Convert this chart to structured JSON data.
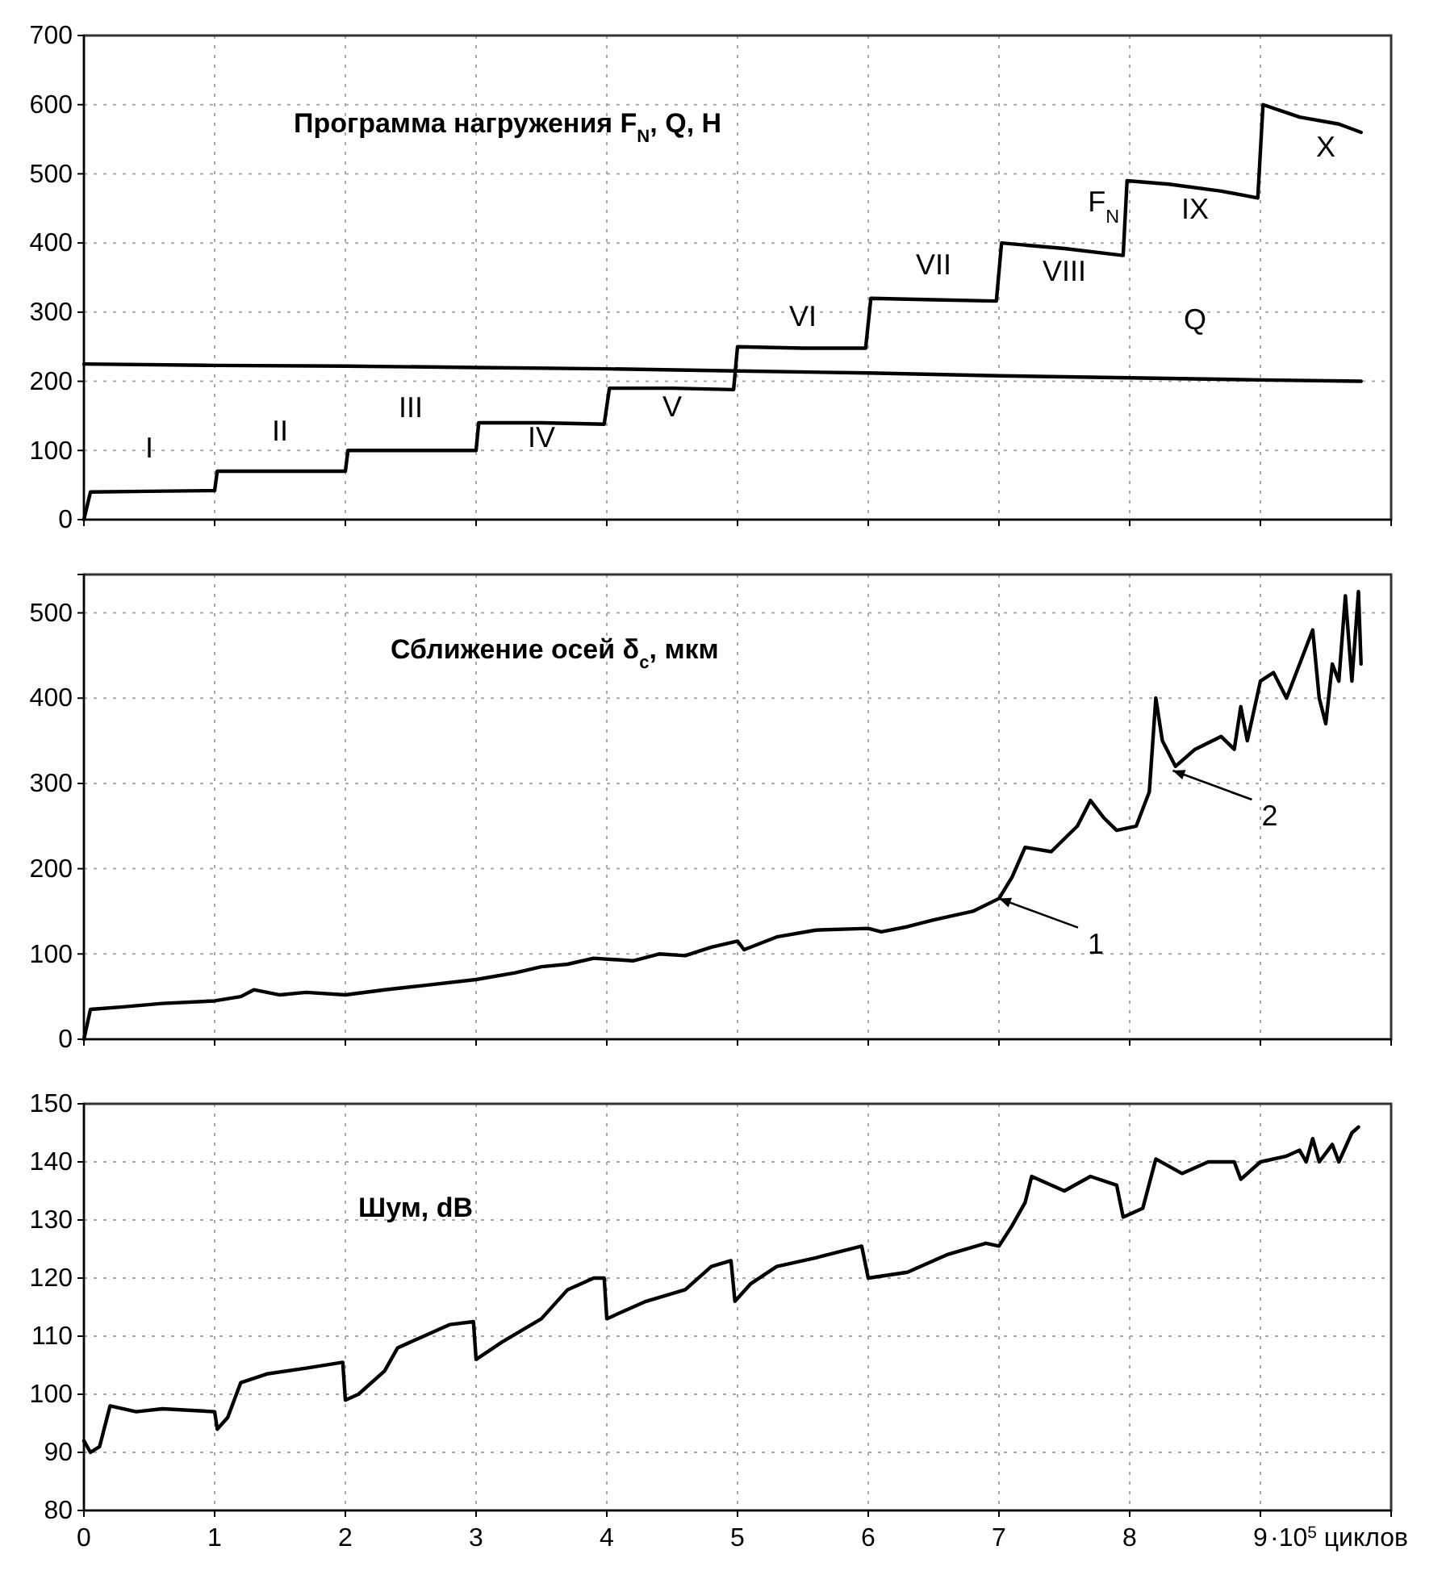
{
  "chart_data": [
    {
      "type": "line",
      "title": "Программа нагружения F$_{N}$, Q, H",
      "xlim": [
        0,
        10
      ],
      "xticks": [
        0,
        1,
        2,
        3,
        4,
        5,
        6,
        7,
        8,
        9
      ],
      "ylim": [
        0,
        700
      ],
      "yticks": [
        0,
        100,
        200,
        300,
        400,
        500,
        600,
        700
      ],
      "grid": true,
      "tick_labels": "y",
      "series": [
        {
          "name": "F$_{N}$",
          "color": "#000000",
          "x": [
            0,
            0.05,
            0.5,
            1.0,
            1.02,
            1.5,
            2.0,
            2.02,
            2.5,
            3.0,
            3.02,
            3.5,
            3.98,
            4.02,
            4.5,
            4.97,
            5.0,
            5.5,
            5.98,
            6.02,
            6.5,
            6.98,
            7.02,
            7.5,
            7.95,
            7.98,
            8.3,
            8.7,
            8.98,
            9.02,
            9.3,
            9.6,
            9.77
          ],
          "values": [
            0,
            40,
            41,
            42,
            70,
            70,
            70,
            100,
            100,
            100,
            140,
            140,
            138,
            190,
            190,
            188,
            250,
            248,
            248,
            320,
            318,
            316,
            400,
            392,
            382,
            490,
            485,
            475,
            465,
            600,
            582,
            572,
            560
          ]
        },
        {
          "name": "Q",
          "color": "#000000",
          "x": [
            0,
            1,
            2,
            3,
            4,
            5,
            6,
            7,
            8,
            9,
            9.77
          ],
          "values": [
            225,
            223,
            222,
            220,
            218,
            215,
            212,
            208,
            205,
            202,
            200
          ]
        }
      ],
      "annotations": [
        "I",
        "II",
        "III",
        "IV",
        "V",
        "VI",
        "VII",
        "VIII",
        "IX",
        "X"
      ]
    },
    {
      "type": "line",
      "title": "Сближение осей δ$_{c}$, мкм",
      "xlim": [
        0,
        10
      ],
      "xticks": [
        0,
        1,
        2,
        3,
        4,
        5,
        6,
        7,
        8,
        9
      ],
      "ylim": [
        0,
        545
      ],
      "yticks": [
        0,
        100,
        200,
        300,
        400,
        500
      ],
      "grid": true,
      "tick_labels": "y",
      "series": [
        {
          "color": "#000000",
          "x": [
            0,
            0.05,
            0.3,
            0.6,
            1.0,
            1.2,
            1.3,
            1.5,
            1.7,
            2.0,
            2.3,
            2.6,
            3.0,
            3.3,
            3.5,
            3.7,
            3.9,
            4.2,
            4.4,
            4.6,
            4.8,
            5.0,
            5.05,
            5.3,
            5.6,
            6.0,
            6.1,
            6.3,
            6.5,
            6.8,
            7.0,
            7.1,
            7.2,
            7.4,
            7.6,
            7.7,
            7.8,
            7.9,
            8.05,
            8.15,
            8.2,
            8.25,
            8.35,
            8.5,
            8.7,
            8.8,
            8.85,
            8.9,
            9.0,
            9.1,
            9.2,
            9.3,
            9.4,
            9.45,
            9.5,
            9.55,
            9.6,
            9.65,
            9.7,
            9.75,
            9.77
          ],
          "values": [
            0,
            35,
            38,
            42,
            45,
            50,
            58,
            52,
            55,
            52,
            58,
            63,
            70,
            78,
            85,
            88,
            95,
            92,
            100,
            98,
            108,
            115,
            105,
            120,
            128,
            130,
            126,
            132,
            140,
            150,
            165,
            190,
            225,
            220,
            250,
            280,
            260,
            245,
            250,
            290,
            400,
            350,
            320,
            340,
            355,
            340,
            390,
            350,
            420,
            430,
            400,
            440,
            480,
            400,
            370,
            440,
            420,
            520,
            420,
            525,
            440
          ]
        }
      ],
      "annotations": [
        {
          "text": "1",
          "x": 7.0,
          "y": 165
        },
        {
          "text": "2",
          "x": 8.33,
          "y": 315
        }
      ]
    },
    {
      "type": "line",
      "title": "Шум, dB",
      "xlim": [
        0,
        10
      ],
      "xticks": [
        0,
        1,
        2,
        3,
        4,
        5,
        6,
        7,
        8,
        9
      ],
      "xlabel": "·10$^{5}$ циклов",
      "ylim": [
        80,
        150
      ],
      "yticks": [
        80,
        90,
        100,
        110,
        120,
        130,
        140,
        150
      ],
      "grid": true,
      "series": [
        {
          "color": "#000000",
          "x": [
            0,
            0.05,
            0.12,
            0.2,
            0.4,
            0.6,
            1.0,
            1.02,
            1.1,
            1.2,
            1.4,
            1.7,
            1.98,
            2.0,
            2.1,
            2.3,
            2.4,
            2.6,
            2.8,
            2.98,
            3.0,
            3.2,
            3.5,
            3.7,
            3.9,
            3.98,
            4.0,
            4.3,
            4.6,
            4.8,
            4.95,
            4.98,
            5.1,
            5.3,
            5.6,
            5.95,
            6.0,
            6.3,
            6.6,
            6.9,
            7.0,
            7.1,
            7.2,
            7.25,
            7.5,
            7.7,
            7.9,
            7.95,
            8.1,
            8.2,
            8.4,
            8.6,
            8.8,
            8.85,
            9.0,
            9.2,
            9.3,
            9.35,
            9.4,
            9.45,
            9.55,
            9.6,
            9.7,
            9.75
          ],
          "values": [
            92,
            90,
            91,
            98,
            97,
            97.5,
            97,
            94,
            96,
            102,
            103.5,
            104.5,
            105.5,
            99,
            100,
            104,
            108,
            110,
            112,
            112.5,
            106,
            109,
            113,
            118,
            120,
            120,
            113,
            116,
            118,
            122,
            123,
            116,
            119,
            122,
            123.5,
            125.5,
            120,
            121,
            124,
            126,
            125.5,
            129,
            133,
            137.5,
            135,
            137.5,
            136,
            130.5,
            132,
            140.5,
            138,
            140,
            140,
            137,
            140,
            141,
            142,
            140,
            144,
            140,
            143,
            140,
            145,
            146
          ]
        }
      ]
    }
  ]
}
